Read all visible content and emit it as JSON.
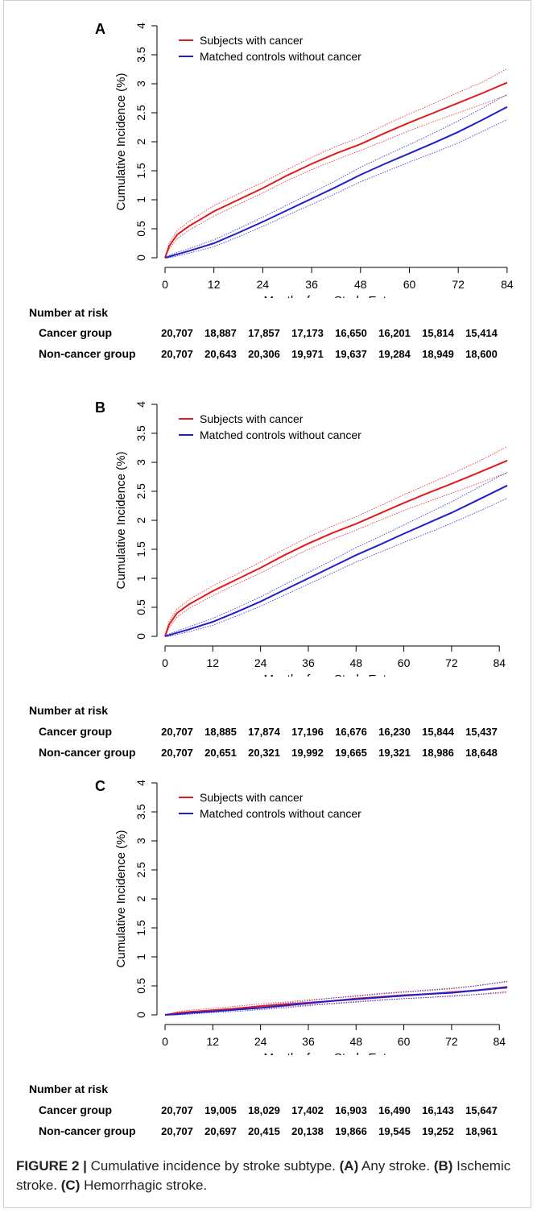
{
  "chart_data": [
    {
      "type": "line",
      "panel_label": "A",
      "xlabel": "Months from Study Entry",
      "ylabel": "Cumulative Incidence (%)",
      "xlim": [
        0,
        86
      ],
      "ylim": [
        0,
        4
      ],
      "xticks": [
        "0",
        "12",
        "24",
        "36",
        "48",
        "60",
        "72",
        "84"
      ],
      "yticks": [
        "0",
        "0.5",
        "1",
        "1.5",
        "2",
        "2.5",
        "3",
        "3.5",
        "4"
      ],
      "legend_position": "top-left",
      "series": [
        {
          "name": "Subjects with cancer",
          "color": "#e31a1c",
          "x": [
            0,
            1,
            3,
            6,
            12,
            18,
            24,
            30,
            36,
            42,
            48,
            54,
            60,
            66,
            72,
            78,
            84
          ],
          "values": [
            0,
            0.2,
            0.4,
            0.55,
            0.8,
            1.0,
            1.2,
            1.42,
            1.62,
            1.8,
            1.96,
            2.15,
            2.33,
            2.5,
            2.67,
            2.84,
            3.02
          ],
          "ci_lower": [
            0,
            0.15,
            0.33,
            0.48,
            0.72,
            0.92,
            1.12,
            1.33,
            1.52,
            1.69,
            1.85,
            2.02,
            2.19,
            2.35,
            2.5,
            2.65,
            2.8
          ],
          "ci_upper": [
            0,
            0.25,
            0.47,
            0.63,
            0.9,
            1.1,
            1.3,
            1.52,
            1.73,
            1.92,
            2.08,
            2.29,
            2.48,
            2.66,
            2.85,
            3.03,
            3.26
          ]
        },
        {
          "name": "Matched controls without cancer",
          "color": "#1f1fcf",
          "x": [
            0,
            1,
            3,
            6,
            12,
            18,
            24,
            30,
            36,
            42,
            48,
            54,
            60,
            66,
            72,
            78,
            84
          ],
          "values": [
            0,
            0.02,
            0.06,
            0.12,
            0.25,
            0.43,
            0.62,
            0.82,
            1.02,
            1.22,
            1.43,
            1.62,
            1.8,
            1.98,
            2.17,
            2.38,
            2.6
          ],
          "ci_lower": [
            0,
            0.0,
            0.03,
            0.08,
            0.19,
            0.36,
            0.54,
            0.73,
            0.92,
            1.11,
            1.31,
            1.48,
            1.65,
            1.81,
            1.98,
            2.18,
            2.38
          ],
          "ci_upper": [
            0,
            0.04,
            0.09,
            0.16,
            0.31,
            0.5,
            0.7,
            0.91,
            1.12,
            1.33,
            1.56,
            1.76,
            1.95,
            2.15,
            2.36,
            2.58,
            2.82
          ]
        }
      ],
      "risk_table": {
        "title": "Number at risk",
        "rows": [
          {
            "label": "Cancer group",
            "values": [
              "20,707",
              "18,887",
              "17,857",
              "17,173",
              "16,650",
              "16,201",
              "15,814",
              "15,414"
            ]
          },
          {
            "label": "Non-cancer group",
            "values": [
              "20,707",
              "20,643",
              "20,306",
              "19,971",
              "19,637",
              "19,284",
              "18,949",
              "18,600"
            ]
          }
        ]
      }
    },
    {
      "type": "line",
      "panel_label": "B",
      "xlabel": "Months from Study Entry",
      "ylabel": "Cumulative Incidence (%)",
      "xlim": [
        0,
        88
      ],
      "ylim": [
        0,
        4
      ],
      "xticks": [
        "0",
        "12",
        "24",
        "36",
        "48",
        "60",
        "72",
        "84"
      ],
      "yticks": [
        "0",
        "0.5",
        "1",
        "1.5",
        "2",
        "2.5",
        "3",
        "3.5",
        "4"
      ],
      "legend_position": "top-left",
      "series": [
        {
          "name": "Subjects with cancer",
          "color": "#e31a1c",
          "x": [
            0,
            1,
            3,
            6,
            12,
            18,
            24,
            30,
            36,
            42,
            48,
            54,
            60,
            66,
            72,
            78,
            86
          ],
          "values": [
            0,
            0.2,
            0.4,
            0.55,
            0.78,
            0.98,
            1.18,
            1.4,
            1.6,
            1.78,
            1.94,
            2.12,
            2.3,
            2.47,
            2.63,
            2.8,
            3.03
          ],
          "ci_lower": [
            0,
            0.15,
            0.33,
            0.48,
            0.7,
            0.9,
            1.09,
            1.3,
            1.5,
            1.67,
            1.83,
            2.0,
            2.17,
            2.32,
            2.47,
            2.62,
            2.82
          ],
          "ci_upper": [
            0,
            0.25,
            0.47,
            0.63,
            0.87,
            1.07,
            1.28,
            1.5,
            1.71,
            1.9,
            2.06,
            2.25,
            2.44,
            2.62,
            2.8,
            2.99,
            3.27
          ]
        },
        {
          "name": "Matched controls without cancer",
          "color": "#1f1fcf",
          "x": [
            0,
            1,
            3,
            6,
            12,
            18,
            24,
            30,
            36,
            42,
            48,
            54,
            60,
            66,
            72,
            78,
            86
          ],
          "values": [
            0,
            0.02,
            0.06,
            0.12,
            0.25,
            0.42,
            0.6,
            0.8,
            1.0,
            1.2,
            1.4,
            1.58,
            1.77,
            1.95,
            2.13,
            2.33,
            2.6
          ],
          "ci_lower": [
            0,
            0.0,
            0.03,
            0.08,
            0.19,
            0.35,
            0.52,
            0.71,
            0.9,
            1.09,
            1.28,
            1.45,
            1.62,
            1.78,
            1.95,
            2.13,
            2.38
          ],
          "ci_upper": [
            0,
            0.04,
            0.09,
            0.16,
            0.31,
            0.49,
            0.68,
            0.89,
            1.1,
            1.31,
            1.53,
            1.72,
            1.92,
            2.12,
            2.32,
            2.54,
            2.83
          ]
        }
      ],
      "risk_table": {
        "title": "Number at risk",
        "rows": [
          {
            "label": "Cancer group",
            "values": [
              "20,707",
              "18,885",
              "17,874",
              "17,196",
              "16,676",
              "16,230",
              "15,844",
              "15,437"
            ]
          },
          {
            "label": "Non-cancer group",
            "values": [
              "20,707",
              "20,651",
              "20,321",
              "19,992",
              "19,665",
              "19,321",
              "18,986",
              "18,648"
            ]
          }
        ]
      }
    },
    {
      "type": "line",
      "panel_label": "C",
      "xlabel": "Months from Study Entry",
      "ylabel": "Cumulative Incidence (%)",
      "xlim": [
        0,
        88
      ],
      "ylim": [
        0,
        4
      ],
      "xticks": [
        "0",
        "12",
        "24",
        "36",
        "48",
        "60",
        "72",
        "84"
      ],
      "yticks": [
        "0",
        "0.5",
        "1",
        "1.5",
        "2",
        "2.5",
        "3",
        "3.5",
        "4"
      ],
      "legend_position": "top-left",
      "series": [
        {
          "name": "Subjects with cancer",
          "color": "#e31a1c",
          "x": [
            0,
            3,
            6,
            12,
            18,
            24,
            30,
            36,
            42,
            48,
            54,
            60,
            66,
            72,
            78,
            86
          ],
          "values": [
            0,
            0.03,
            0.05,
            0.08,
            0.11,
            0.15,
            0.18,
            0.21,
            0.24,
            0.28,
            0.31,
            0.34,
            0.36,
            0.39,
            0.42,
            0.47
          ],
          "ci_lower": [
            0,
            0.01,
            0.03,
            0.05,
            0.08,
            0.11,
            0.14,
            0.17,
            0.2,
            0.23,
            0.26,
            0.28,
            0.3,
            0.33,
            0.35,
            0.38
          ],
          "ci_upper": [
            0,
            0.05,
            0.08,
            0.11,
            0.15,
            0.19,
            0.22,
            0.26,
            0.29,
            0.33,
            0.37,
            0.4,
            0.43,
            0.46,
            0.5,
            0.57
          ]
        },
        {
          "name": "Matched controls without cancer",
          "color": "#1f1fcf",
          "x": [
            0,
            3,
            6,
            12,
            18,
            24,
            30,
            36,
            42,
            48,
            54,
            60,
            66,
            72,
            78,
            86
          ],
          "values": [
            0,
            0.01,
            0.03,
            0.06,
            0.09,
            0.12,
            0.16,
            0.2,
            0.24,
            0.27,
            0.3,
            0.33,
            0.36,
            0.38,
            0.42,
            0.48
          ],
          "ci_lower": [
            0,
            0.0,
            0.01,
            0.04,
            0.06,
            0.09,
            0.12,
            0.16,
            0.19,
            0.22,
            0.25,
            0.28,
            0.3,
            0.32,
            0.35,
            0.4
          ],
          "ci_upper": [
            0,
            0.03,
            0.05,
            0.08,
            0.12,
            0.16,
            0.2,
            0.24,
            0.29,
            0.32,
            0.36,
            0.39,
            0.42,
            0.45,
            0.5,
            0.58
          ]
        }
      ],
      "risk_table": {
        "title": "Number at risk",
        "rows": [
          {
            "label": "Cancer group",
            "values": [
              "20,707",
              "19,005",
              "18,029",
              "17,402",
              "16,903",
              "16,490",
              "16,143",
              "15,647"
            ]
          },
          {
            "label": "Non-cancer group",
            "values": [
              "20,707",
              "20,697",
              "20,415",
              "20,138",
              "19,866",
              "19,545",
              "19,252",
              "18,961"
            ]
          }
        ]
      }
    }
  ],
  "caption": {
    "figure_label": "FIGURE 2 |",
    "text": "Cumulative incidence by stroke subtype.",
    "part_a_label": "(A)",
    "part_a_text": "Any stroke.",
    "part_b_label": "(B)",
    "part_b_text": "Ischemic stroke.",
    "part_c_label": "(C)",
    "part_c_text": "Hemorrhagic stroke."
  }
}
